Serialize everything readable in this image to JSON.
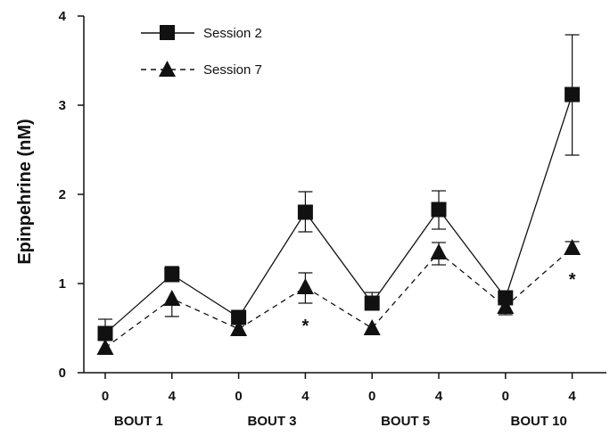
{
  "chart_data": {
    "type": "line",
    "title": "",
    "xlabel": "",
    "ylabel": "Epinpehrine (nM)",
    "ylim": [
      0,
      4
    ],
    "yticks": [
      "0",
      "1",
      "2",
      "3",
      "4"
    ],
    "grid": false,
    "legend_position": "top-left",
    "x_tick_labels": [
      "0",
      "4",
      "0",
      "4",
      "0",
      "4",
      "0",
      "4"
    ],
    "groups": [
      "BOUT 1",
      "BOUT 3",
      "BOUT 5",
      "BOUT 10"
    ],
    "series": [
      {
        "name": "Session 2",
        "marker": "square",
        "line_style": "solid",
        "values": [
          0.44,
          1.1,
          0.62,
          1.8,
          0.78,
          1.83,
          0.84,
          3.12
        ],
        "err_upper": [
          0.6,
          1.19,
          0.62,
          2.03,
          0.9,
          2.04,
          0.84,
          3.79
        ],
        "err_lower": [
          0.44,
          1.1,
          0.62,
          1.58,
          0.78,
          1.61,
          0.84,
          2.44
        ]
      },
      {
        "name": "Session 7",
        "marker": "triangle",
        "line_style": "dashed",
        "values": [
          0.28,
          0.83,
          0.49,
          0.96,
          0.5,
          1.35,
          0.74,
          1.4
        ],
        "err_upper": [
          0.28,
          0.83,
          0.49,
          1.12,
          0.5,
          1.46,
          0.74,
          1.47
        ],
        "err_lower": [
          0.28,
          0.63,
          0.49,
          0.78,
          0.5,
          1.21,
          0.65,
          1.33
        ]
      }
    ],
    "annotations": [
      {
        "text": "*",
        "x_index": 3,
        "y": 0.58
      },
      {
        "text": "*",
        "x_index": 7,
        "y": 1.1
      }
    ]
  }
}
